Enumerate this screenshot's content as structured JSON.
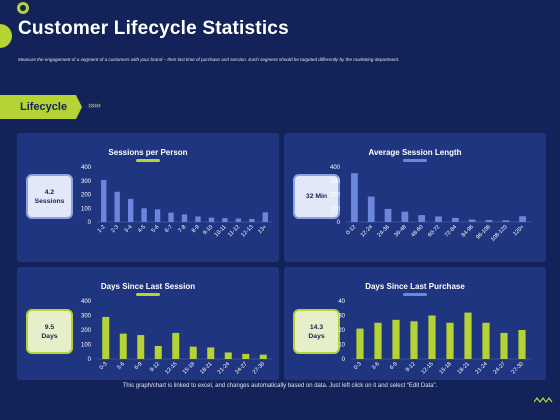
{
  "header": {
    "title": "Customer Lifecycle Statistics",
    "subtitle": "Measure the engagement  of a segment  of a customers  with your brand – their last time  of purchase and session. Each segment  should be targeted differently by the marketing  department."
  },
  "section": {
    "label": "Lifecycle",
    "chevrons": "»»»"
  },
  "colors": {
    "background": "#13235a",
    "panel": "#203580",
    "accent_green": "#b5d334",
    "accent_blue": "#6c86dd"
  },
  "kpis": {
    "sessions": "4.2\nSessions",
    "session_length": "32 Min",
    "last_session": "9.5\nDays",
    "last_purchase": "14.3\nDays"
  },
  "chart_data": [
    {
      "type": "bar",
      "title": "Sessions per Person",
      "categories": [
        "1-2",
        "2-3",
        "3-4",
        "4-5",
        "5-6",
        "6-7",
        "7-8",
        "8-9",
        "9-10",
        "10-11",
        "11-12",
        "12-13",
        "13+"
      ],
      "values": [
        305,
        220,
        168,
        100,
        92,
        68,
        55,
        40,
        32,
        28,
        25,
        22,
        70
      ],
      "ylim": [
        0,
        400
      ],
      "yticks": [
        0,
        100,
        200,
        300,
        400
      ],
      "color": "#6c86dd"
    },
    {
      "type": "bar",
      "title": "Average Session Length",
      "categories": [
        "0-12",
        "12-24",
        "24-36",
        "36-48",
        "48-60",
        "60-72",
        "72-84",
        "84-96",
        "96-108",
        "108-120",
        "120+"
      ],
      "values": [
        355,
        185,
        95,
        75,
        50,
        40,
        30,
        18,
        15,
        12,
        42
      ],
      "ylim": [
        0,
        400
      ],
      "yticks": [
        0,
        100,
        200,
        300,
        400
      ],
      "color": "#6c86dd"
    },
    {
      "type": "bar",
      "title": "Days Since Last Session",
      "categories": [
        "0-3",
        "3-6",
        "6-9",
        "9-12",
        "12-15",
        "15-18",
        "18-21",
        "21-24",
        "24-27",
        "27-30"
      ],
      "values": [
        290,
        175,
        165,
        90,
        180,
        85,
        80,
        45,
        35,
        30
      ],
      "ylim": [
        0,
        400
      ],
      "yticks": [
        0,
        100,
        200,
        300,
        400
      ],
      "color": "#b5d334"
    },
    {
      "type": "bar",
      "title": "Days Since Last Purchase",
      "categories": [
        "0-3",
        "3-6",
        "6-9",
        "9-12",
        "12-15",
        "15-18",
        "18-21",
        "21-24",
        "24-27",
        "27-30"
      ],
      "values": [
        21,
        25,
        27,
        26,
        30,
        25,
        32,
        25,
        18,
        20
      ],
      "ylim": [
        0,
        40
      ],
      "yticks": [
        0,
        10,
        20,
        30,
        40
      ],
      "color": "#b5d334"
    }
  ],
  "footer": {
    "note": "This graph/chart is linked to excel, and changes automatically based on data. Just left click on it and select “Edit Data”."
  }
}
